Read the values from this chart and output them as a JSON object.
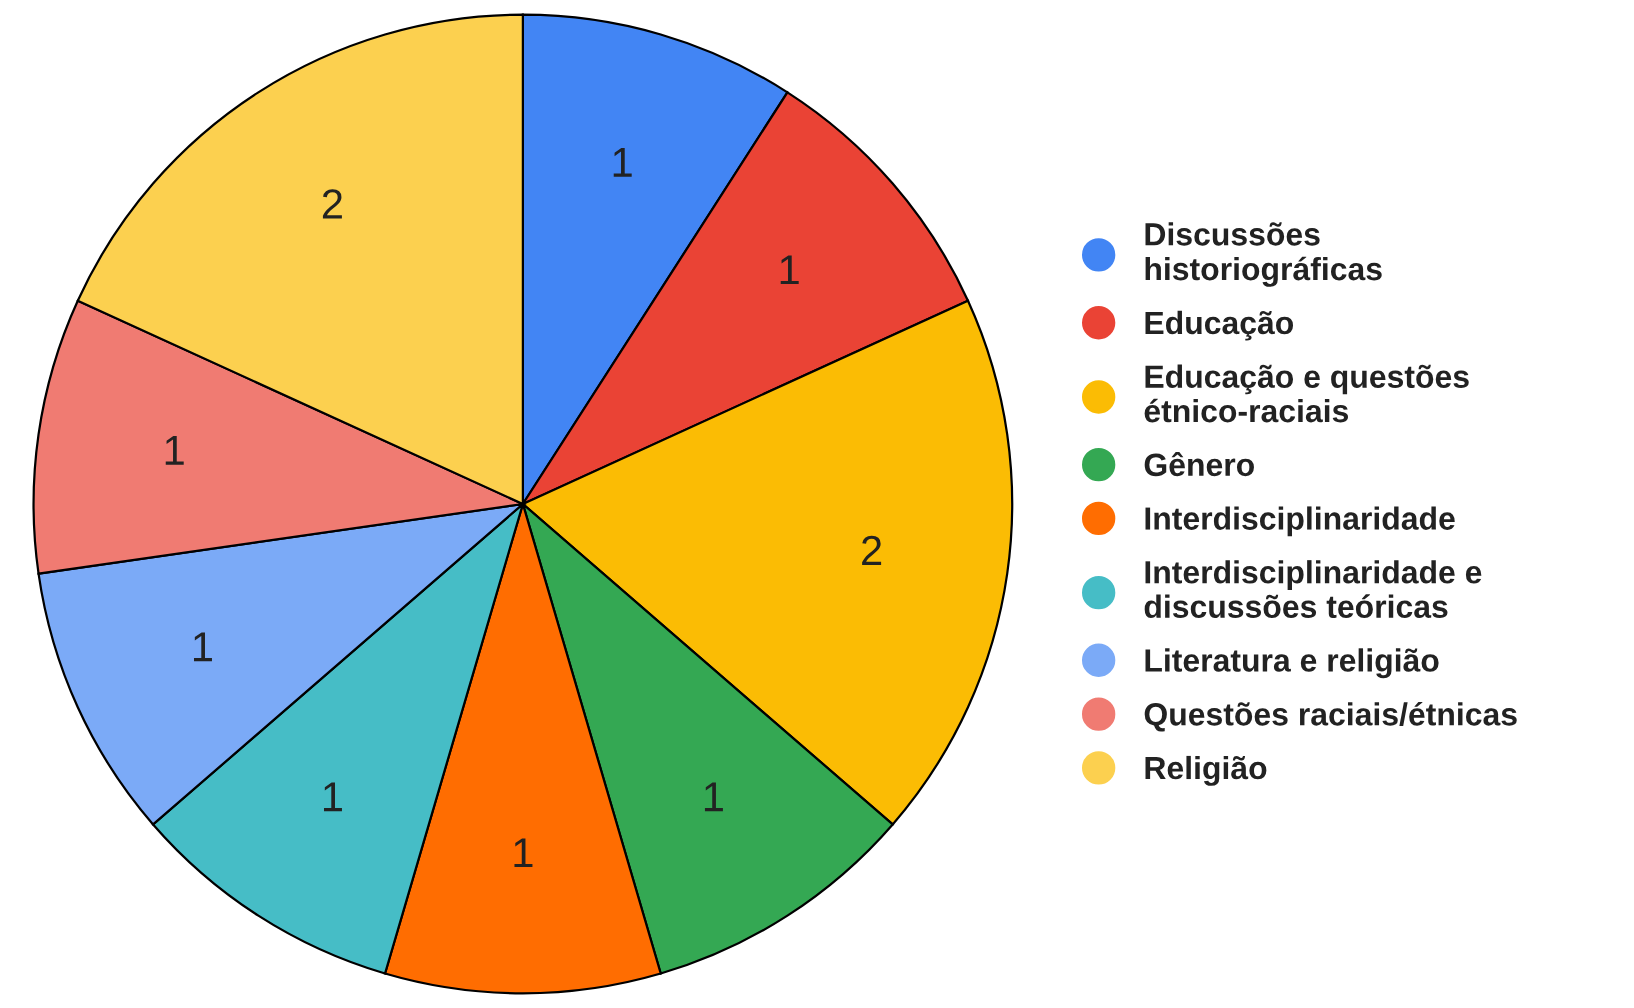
{
  "chart_data": {
    "type": "pie",
    "categories": [
      "Discussões historiográficas",
      "Educação",
      "Educação e questões étnico-raciais",
      "Gênero",
      "Interdisciplinaridade",
      "Interdisciplinaridade e discussões teóricas",
      "Literatura e religião",
      "Questões raciais/étnicas",
      "Religião"
    ],
    "values": [
      1,
      1,
      2,
      1,
      1,
      1,
      1,
      1,
      2
    ],
    "colors": [
      "#4285f4",
      "#ea4335",
      "#fbbc04",
      "#34a853",
      "#ff6d01",
      "#46bdc6",
      "#7baaf7",
      "#f07b72",
      "#fcd04f"
    ],
    "data_labels": true,
    "legend": "right"
  }
}
